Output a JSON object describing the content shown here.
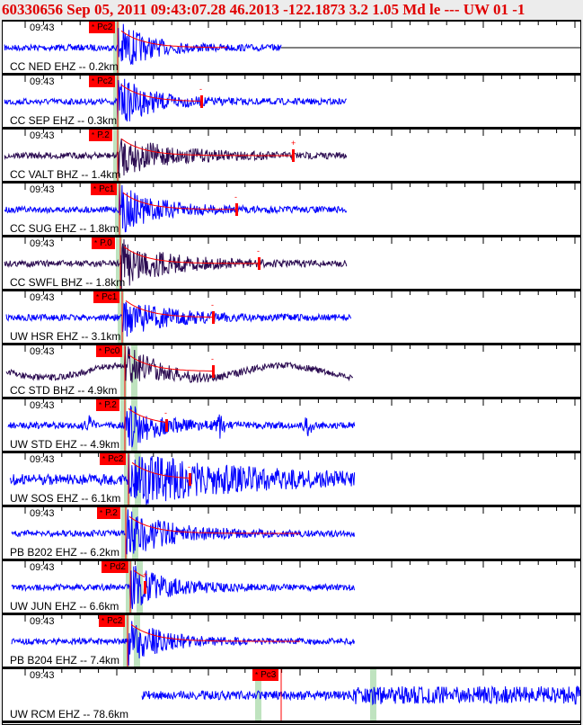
{
  "header": {
    "title": "60330656 Sep 05, 2011 09:43:07.28    46.2013 -122.1873  3.2 1.05 Md le --- UW 01   -1"
  },
  "colors": {
    "trace_blue": "#0000ff",
    "trace_dark": "#2a0a50",
    "pick": "#ff0000",
    "band": "#bfe3bf"
  },
  "traces": [
    {
      "time": "09:43",
      "station": "CC NED EHZ -- 0.2km",
      "pick": "Pc2"
    },
    {
      "time": "09:43",
      "station": "CC SEP EHZ -- 0.3km",
      "pick": "Pc2"
    },
    {
      "time": "09:43",
      "station": "CC VALT BHZ -- 1.4km",
      "pick": "P.2"
    },
    {
      "time": "09:43",
      "station": "CC SUG EHZ -- 1.8km",
      "pick": "Pc1"
    },
    {
      "time": "09:43",
      "station": "CC SWFL BHZ -- 1.8km",
      "pick": "P.0"
    },
    {
      "time": "09:43",
      "station": "UW HSR EHZ -- 3.1km",
      "pick": "Pc1"
    },
    {
      "time": "09:43",
      "station": "CC STD BHZ -- 4.9km",
      "pick": "Pc0"
    },
    {
      "time": "09:43",
      "station": "UW STD EHZ -- 4.9km",
      "pick": "P.2"
    },
    {
      "time": "09:43",
      "station": "UW SOS EHZ -- 6.1km",
      "pick": "Pc2"
    },
    {
      "time": "09:43",
      "station": "PB B202 EHZ -- 6.2km",
      "pick": "P.2"
    },
    {
      "time": "09:43",
      "station": "UW JUN EHZ -- 6.6km",
      "pick": "Pd2"
    },
    {
      "time": "09:43",
      "station": "PB B204 EHZ -- 7.4km",
      "pick": "Pc2"
    },
    {
      "time": "09:43",
      "station": "UW RCM EHZ -- 78.6km",
      "pick": "Pc3"
    }
  ],
  "pick_star": "*"
}
